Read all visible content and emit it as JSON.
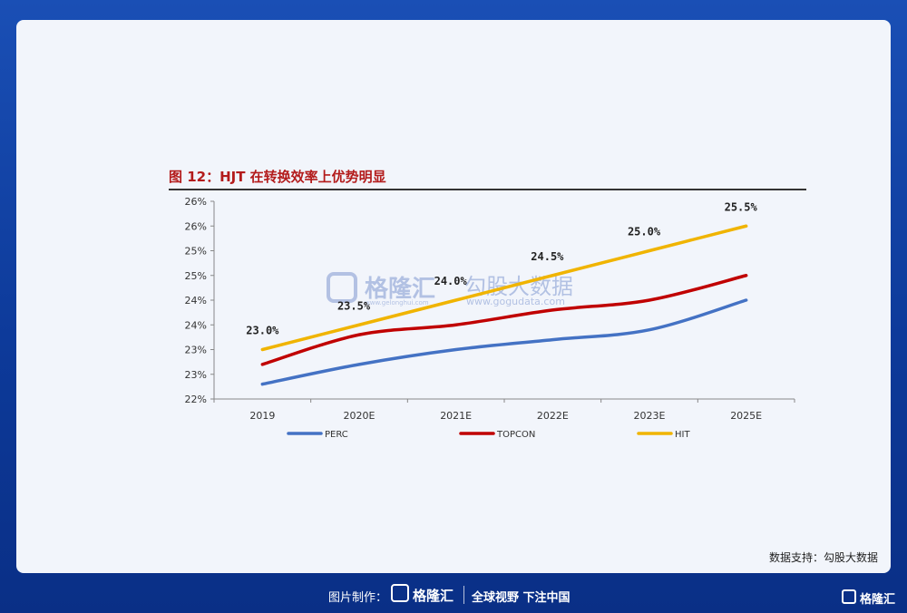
{
  "figure_title": "图 12：HJT 在转换效率上优势明显",
  "source": "数据支持：勾股大数据",
  "watermark": {
    "brand_name": "格隆汇",
    "brand_url": "www.gelonghui.com",
    "data_brand": "勾股大数据",
    "data_url": "www.gogudata.com"
  },
  "footer": {
    "made_by": "图片制作：",
    "logo_text": "格隆汇",
    "slogan": "全球视野 下注中国",
    "corner_logo_text": "格隆汇"
  },
  "colors": {
    "PERC": "#4472c4",
    "TOPCON": "#c00000",
    "HIT": "#f0b400",
    "title": "#b31b1b"
  },
  "chart_data": {
    "type": "line",
    "title": "图 12：HJT 在转换效率上优势明显",
    "categories": [
      "2019",
      "2020E",
      "2021E",
      "2022E",
      "2023E",
      "2025E"
    ],
    "y_tick_labels": [
      "22%",
      "23%",
      "23%",
      "24%",
      "24%",
      "25%",
      "25%",
      "26%",
      "26%"
    ],
    "ylim": [
      22,
      26
    ],
    "grid": false,
    "legend_position": "bottom",
    "series": [
      {
        "name": "PERC",
        "values": [
          22.3,
          22.7,
          23.0,
          23.2,
          23.4,
          24.0
        ]
      },
      {
        "name": "TOPCON",
        "values": [
          22.7,
          23.3,
          23.5,
          23.8,
          24.0,
          24.5
        ]
      },
      {
        "name": "HIT",
        "values": [
          23.0,
          23.5,
          24.0,
          24.5,
          25.0,
          25.5
        ],
        "data_labels": [
          "23.0%",
          "23.5%",
          "24.0%",
          "24.5%",
          "25.0%",
          "25.5%"
        ]
      }
    ]
  }
}
